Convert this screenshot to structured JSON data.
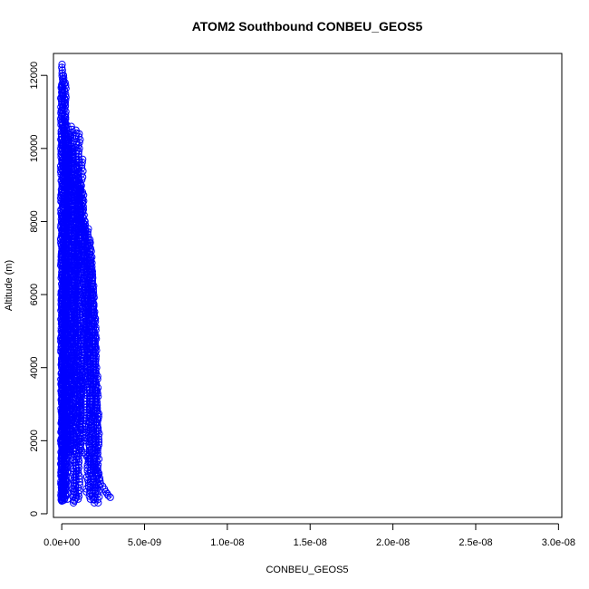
{
  "chart_data": {
    "type": "scatter",
    "title": "ATOM2 Southbound CONBEU_GEOS5",
    "xlabel": "CONBEU_GEOS5",
    "ylabel": "Altitude (m)",
    "xlim": [
      -5e-10,
      3.02e-08
    ],
    "ylim": [
      -100,
      12600
    ],
    "x_ticks": [
      0,
      5e-09,
      1e-08,
      1.5e-08,
      2e-08,
      2.5e-08,
      3e-08
    ],
    "x_tick_labels": [
      "0.0e+00",
      "5.0e-09",
      "1.0e-08",
      "1.5e-08",
      "2.0e-08",
      "2.5e-08",
      "3.0e-08"
    ],
    "y_ticks": [
      0,
      2000,
      4000,
      6000,
      8000,
      10000,
      12000
    ],
    "y_tick_labels": [
      "0",
      "2000",
      "4000",
      "6000",
      "8000",
      "10000",
      "12000"
    ],
    "marker": "open-circle",
    "color": "#0000ff",
    "grid": false,
    "legend": "none",
    "profiles": [
      {
        "x": [
          3e-12,
          5e-12,
          4e-12,
          6e-12,
          5e-12,
          7e-12,
          6e-12
        ],
        "y": [
          350,
          2000,
          4000,
          6000,
          8000,
          10000,
          11700
        ]
      },
      {
        "x": [
          1e-11,
          1.2e-11,
          1.5e-11,
          1.2e-11,
          1.8e-11,
          2e-11
        ],
        "y": [
          400,
          2500,
          5000,
          7500,
          10000,
          12300
        ]
      },
      {
        "x": [
          2.5e-11,
          3e-11,
          6e-11,
          8e-11,
          1.2e-10,
          1e-10
        ],
        "y": [
          380,
          1500,
          3500,
          6000,
          9000,
          12000
        ]
      },
      {
        "x": [
          8e-11,
          1e-10,
          1.5e-10,
          1.3e-10,
          1.8e-10,
          2e-10
        ],
        "y": [
          360,
          2200,
          4500,
          7000,
          9500,
          11800
        ]
      },
      {
        "x": [
          1.5e-10,
          1.8e-10,
          2e-10,
          2.2e-10,
          2.5e-10,
          2.3e-10
        ],
        "y": [
          420,
          2000,
          5000,
          8000,
          10000,
          10800
        ]
      },
      {
        "x": [
          2e-10,
          2.6e-10,
          3e-10,
          2.5e-10,
          3.5e-10,
          4e-10
        ],
        "y": [
          380,
          1500,
          3000,
          6000,
          9000,
          10400
        ]
      },
      {
        "x": [
          2.8e-10,
          3.5e-10,
          4.2e-10,
          3.8e-10,
          3.6e-10,
          3.9e-10
        ],
        "y": [
          400,
          2500,
          4500,
          6300,
          8000,
          10200
        ]
      },
      {
        "x": [
          3e-10,
          4e-10,
          5.5e-10,
          4.5e-10,
          4e-10,
          4.5e-10
        ],
        "y": [
          1700,
          3000,
          4500,
          6000,
          8000,
          10400
        ]
      },
      {
        "x": [
          4.5e-10,
          5e-10,
          6e-10,
          5.5e-10,
          6e-10,
          5.8e-10
        ],
        "y": [
          1700,
          2800,
          4000,
          6000,
          8000,
          10600
        ]
      },
      {
        "x": [
          5.5e-10,
          6e-10,
          7e-10,
          6.5e-10,
          6e-10,
          6.2e-10
        ],
        "y": [
          1600,
          2400,
          3800,
          6000,
          8500,
          10000
        ]
      },
      {
        "x": [
          7e-10,
          7.5e-10,
          6.5e-10,
          7.2e-10,
          8e-10,
          9e-10
        ],
        "y": [
          300,
          1000,
          2500,
          4000,
          6500,
          9000
        ]
      },
      {
        "x": [
          8e-10,
          8.5e-10,
          9e-10,
          9.5e-10,
          8.8e-10,
          8.5e-10
        ],
        "y": [
          350,
          1400,
          3000,
          5000,
          7500,
          10500
        ]
      },
      {
        "x": [
          1e-09,
          1.05e-09,
          1.1e-09,
          9.5e-10,
          1e-09,
          1.05e-09
        ],
        "y": [
          400,
          1500,
          3200,
          6000,
          8500,
          10400
        ]
      },
      {
        "x": [
          1.15e-09,
          1.1e-09,
          1.2e-09,
          1e-09,
          1.1e-09,
          1.26e-09
        ],
        "y": [
          1900,
          3000,
          4500,
          6000,
          8500,
          9700
        ]
      },
      {
        "x": [
          1e-09,
          1.2e-09,
          1.4e-09,
          1.45e-09,
          1.3e-09,
          9e-10
        ],
        "y": [
          2500,
          3500,
          4500,
          5500,
          7000,
          9500
        ]
      },
      {
        "x": [
          1.4e-09,
          1.5e-09,
          1.55e-09,
          1.5e-09,
          1.35e-09,
          1.15e-09
        ],
        "y": [
          2000,
          3000,
          4000,
          5500,
          7000,
          9000
        ]
      },
      {
        "x": [
          1.55e-09,
          1.62e-09,
          1.7e-09,
          1.5e-09,
          1.4e-09,
          1.25e-09
        ],
        "y": [
          600,
          1500,
          3000,
          5000,
          7000,
          8800
        ]
      },
      {
        "x": [
          1.7e-09,
          1.72e-09,
          1.75e-09,
          1.7e-09,
          1.6e-09,
          1.4e-09
        ],
        "y": [
          400,
          1200,
          2500,
          4500,
          6000,
          8000
        ]
      },
      {
        "x": [
          1.9e-09,
          1.95e-09,
          2e-09,
          1.9e-09,
          1.8e-09,
          1.6e-09
        ],
        "y": [
          400,
          1500,
          3000,
          4500,
          6000,
          7800
        ]
      },
      {
        "x": [
          2e-09,
          2.05e-09,
          2.1e-09,
          2e-09,
          1.9e-09,
          1.7e-09
        ],
        "y": [
          300,
          1200,
          2500,
          4500,
          6000,
          7500
        ]
      },
      {
        "x": [
          2.2e-09,
          2.18e-09,
          2.2e-09,
          2.1e-09,
          1.95e-09,
          1.75e-09
        ],
        "y": [
          300,
          1500,
          2500,
          4000,
          5500,
          7000
        ]
      },
      {
        "x": [
          2.96e-09,
          2.6e-09,
          2.3e-09,
          2.1e-09,
          1.7e-09,
          9e-10
        ],
        "y": [
          450,
          600,
          900,
          1200,
          1500,
          1900
        ]
      }
    ]
  }
}
